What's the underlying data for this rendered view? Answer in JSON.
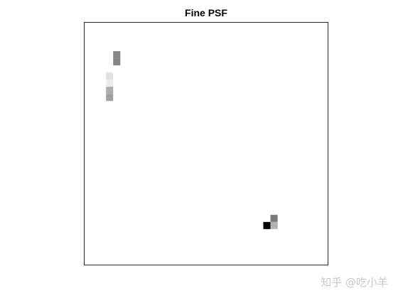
{
  "watermark": "知乎 @吃小羊",
  "chart_data": {
    "type": "heatmap",
    "title": "Fine PSF",
    "xlabel": "",
    "ylabel": "",
    "axes_ticks": false,
    "grid": false,
    "colormap": "gray-inverted",
    "grid_size": [
      34,
      34
    ],
    "cells": [
      {
        "row": 4,
        "col": 4,
        "value": 0.47
      },
      {
        "row": 5,
        "col": 4,
        "value": 0.47
      },
      {
        "row": 7,
        "col": 3,
        "value": 0.12
      },
      {
        "row": 8,
        "col": 3,
        "value": 0.07
      },
      {
        "row": 9,
        "col": 3,
        "value": 0.32
      },
      {
        "row": 10,
        "col": 3,
        "value": 0.37
      },
      {
        "row": 27,
        "col": 26,
        "value": 0.52
      },
      {
        "row": 28,
        "col": 25,
        "value": 1.0
      },
      {
        "row": 28,
        "col": 26,
        "value": 0.3
      }
    ]
  }
}
